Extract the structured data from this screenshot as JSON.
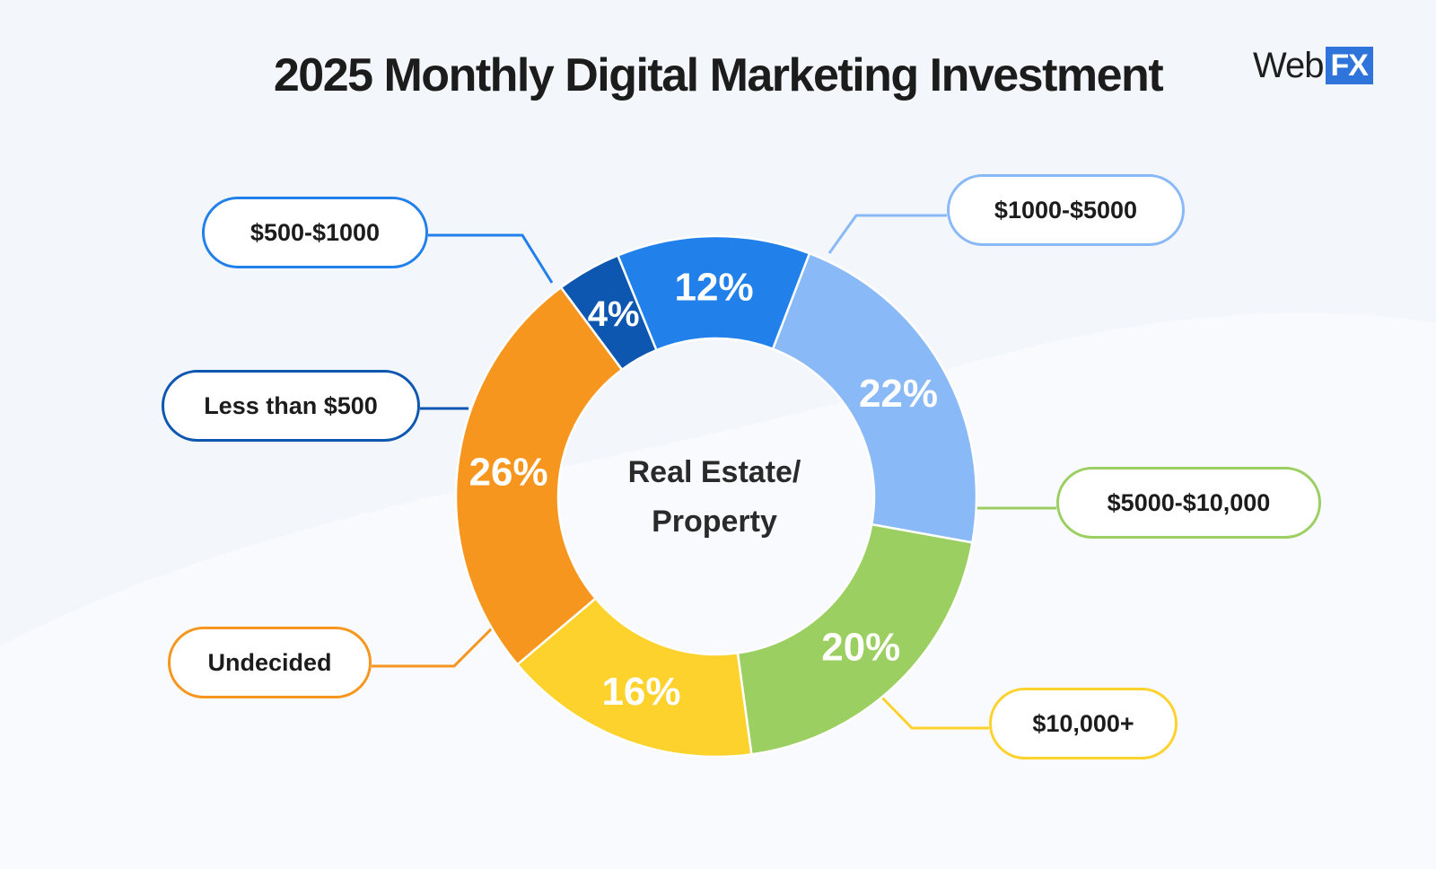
{
  "title": "2025 Monthly Digital Marketing Investment",
  "logo": {
    "text": "Web",
    "badge": "FX"
  },
  "chart_data": {
    "type": "pie",
    "center_label": "Real Estate/ Property",
    "center_label_lines": [
      "Real Estate/",
      "Property"
    ],
    "slices": [
      {
        "label": "$1000-$5000",
        "value": 22,
        "display": "22%",
        "color": "#89b9f6"
      },
      {
        "label": "$5000-$10,000",
        "value": 20,
        "display": "20%",
        "color": "#9ccf62"
      },
      {
        "label": "$10,000+",
        "value": 16,
        "display": "16%",
        "color": "#fed22c"
      },
      {
        "label": "Undecided",
        "value": 26,
        "display": "26%",
        "color": "#f6961f"
      },
      {
        "label": "Less than $500",
        "value": 4,
        "display": "4%",
        "color": "#0d57b0"
      },
      {
        "label": "$500-$1000",
        "value": 12,
        "display": "12%",
        "color": "#2180e9"
      }
    ]
  }
}
